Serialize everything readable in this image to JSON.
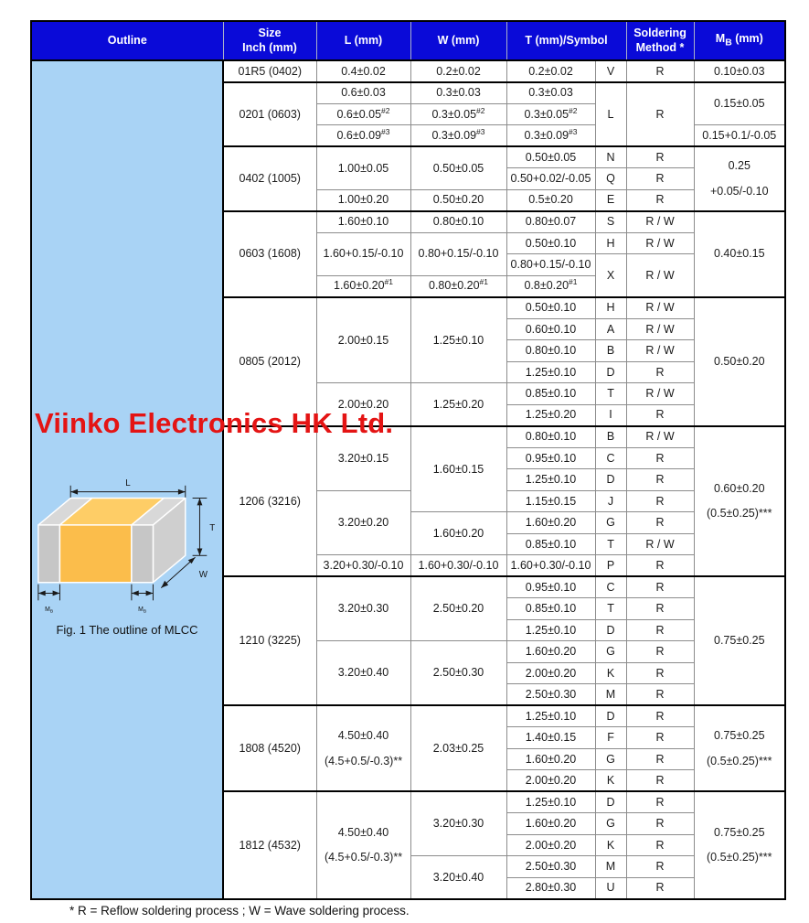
{
  "colors": {
    "header_bg": "#0a0ad8",
    "panel_bg": "#a9d3f5",
    "watermark": "#e41414",
    "chip_body_front": "#fbbd4b",
    "chip_body_top": "#fecd66",
    "chip_cap_front": "#c6c6c6",
    "chip_cap_top": "#d8d8d8",
    "chip_side": "#cfcfcf"
  },
  "header": {
    "outline": "Outline",
    "size": "Size\nInch (mm)",
    "l": "L (mm)",
    "w": "W (mm)",
    "t": "T (mm)/Symbol",
    "soldering": "Soldering\nMethod *",
    "mb_pre": "M",
    "mb_sub": "B",
    "mb_post": " (mm)"
  },
  "figure": {
    "caption": "Fig. 1 The outline of MLCC",
    "dim_l": "L",
    "dim_t": "T",
    "dim_w": "W",
    "mb_main": "M",
    "mb_sub": "B"
  },
  "watermark": "Viinko Electronics HK Ltd.",
  "footnote": "* R = Reflow soldering process ; W = Wave soldering process.",
  "table": {
    "sections": [
      {
        "size": "01R5 (0402)",
        "rows": [
          [
            {
              "t": "0.4±0.02"
            },
            {
              "t": "0.2±0.02"
            },
            {
              "t": "0.2±0.02"
            },
            {
              "t": "V"
            },
            {
              "t": "R"
            },
            {
              "t": "0.10±0.03"
            }
          ]
        ]
      },
      {
        "size": "0201 (0603)",
        "rows": [
          [
            {
              "t": "0.6±0.03"
            },
            {
              "t": "0.3±0.03"
            },
            {
              "t": "0.3±0.03"
            },
            {
              "t": "L",
              "rs": 3
            },
            {
              "t": "R",
              "rs": 3
            },
            {
              "t": "0.15±0.05",
              "rs": 2
            }
          ],
          [
            {
              "t": "0.6±0.05",
              "sup": "#2"
            },
            {
              "t": "0.3±0.05",
              "sup": "#2"
            },
            {
              "t": "0.3±0.05",
              "sup": "#2"
            }
          ],
          [
            {
              "t": "0.6±0.09",
              "sup": "#3"
            },
            {
              "t": "0.3±0.09",
              "sup": "#3"
            },
            {
              "t": "0.3±0.09",
              "sup": "#3"
            },
            {
              "t": "0.15+0.1/-0.05"
            }
          ]
        ]
      },
      {
        "size": "0402 (1005)",
        "rows": [
          [
            {
              "t": "1.00±0.05",
              "rs": 2
            },
            {
              "t": "0.50±0.05",
              "rs": 2
            },
            {
              "t": "0.50±0.05"
            },
            {
              "t": "N"
            },
            {
              "t": "R"
            },
            {
              "lines": [
                "0.25",
                "+0.05/-0.10"
              ],
              "rs": 3
            }
          ],
          [
            {
              "t": "0.50+0.02/-0.05"
            },
            {
              "t": "Q"
            },
            {
              "t": "R"
            }
          ],
          [
            {
              "t": "1.00±0.20"
            },
            {
              "t": "0.50±0.20"
            },
            {
              "t": "0.5±0.20"
            },
            {
              "t": "E"
            },
            {
              "t": "R"
            }
          ]
        ]
      },
      {
        "size": "0603 (1608)",
        "rows": [
          [
            {
              "t": "1.60±0.10"
            },
            {
              "t": "0.80±0.10"
            },
            {
              "t": "0.80±0.07"
            },
            {
              "t": "S"
            },
            {
              "t": "R / W"
            },
            {
              "t": "0.40±0.15",
              "rs": 4
            }
          ],
          [
            {
              "t": "1.60+0.15/-0.10",
              "rs": 2
            },
            {
              "t": "0.80+0.15/-0.10",
              "rs": 2
            },
            {
              "t": "0.50±0.10"
            },
            {
              "t": "H"
            },
            {
              "t": "R / W"
            }
          ],
          [
            {
              "t": "0.80+0.15/-0.10"
            },
            {
              "t": "X",
              "rs": 2
            },
            {
              "t": "R / W",
              "rs": 2
            }
          ],
          [
            {
              "t": "1.60±0.20",
              "sup": "#1"
            },
            {
              "t": "0.80±0.20",
              "sup": "#1"
            },
            {
              "t": "0.8±0.20",
              "sup": "#1"
            }
          ]
        ]
      },
      {
        "size": "0805 (2012)",
        "rows": [
          [
            {
              "t": "2.00±0.15",
              "rs": 4
            },
            {
              "t": "1.25±0.10",
              "rs": 4
            },
            {
              "t": "0.50±0.10"
            },
            {
              "t": "H"
            },
            {
              "t": "R / W"
            },
            {
              "t": "0.50±0.20",
              "rs": 6
            }
          ],
          [
            {
              "t": "0.60±0.10"
            },
            {
              "t": "A"
            },
            {
              "t": "R / W"
            }
          ],
          [
            {
              "t": "0.80±0.10"
            },
            {
              "t": "B"
            },
            {
              "t": "R / W"
            }
          ],
          [
            {
              "t": "1.25±0.10"
            },
            {
              "t": "D"
            },
            {
              "t": "R"
            }
          ],
          [
            {
              "t": "2.00±0.20",
              "rs": 2
            },
            {
              "t": "1.25±0.20",
              "rs": 2
            },
            {
              "t": "0.85±0.10"
            },
            {
              "t": "T"
            },
            {
              "t": "R / W"
            }
          ],
          [
            {
              "t": "1.25±0.20"
            },
            {
              "t": "I"
            },
            {
              "t": "R"
            }
          ]
        ]
      },
      {
        "size": "1206 (3216)",
        "rows": [
          [
            {
              "t": "3.20±0.15",
              "rs": 3
            },
            {
              "t": "1.60±0.15",
              "rs": 4
            },
            {
              "t": "0.80±0.10"
            },
            {
              "t": "B"
            },
            {
              "t": "R / W"
            },
            {
              "lines": [
                "0.60±0.20",
                "(0.5±0.25)***"
              ],
              "rs": 7
            }
          ],
          [
            {
              "t": "0.95±0.10"
            },
            {
              "t": "C"
            },
            {
              "t": "R"
            }
          ],
          [
            {
              "t": "1.25±0.10"
            },
            {
              "t": "D"
            },
            {
              "t": "R"
            }
          ],
          [
            {
              "t": "3.20±0.20",
              "rs": 3
            },
            {
              "t": "1.15±0.15"
            },
            {
              "t": "J"
            },
            {
              "t": "R"
            }
          ],
          [
            {
              "t": "1.60±0.20",
              "rs": 2
            },
            {
              "t": "1.60±0.20"
            },
            {
              "t": "G"
            },
            {
              "t": "R"
            }
          ],
          [
            {
              "t": "0.85±0.10"
            },
            {
              "t": "T"
            },
            {
              "t": "R / W"
            }
          ],
          [
            {
              "t": "3.20+0.30/-0.10"
            },
            {
              "t": "1.60+0.30/-0.10"
            },
            {
              "t": "1.60+0.30/-0.10"
            },
            {
              "t": "P"
            },
            {
              "t": "R"
            }
          ]
        ]
      },
      {
        "size": "1210 (3225)",
        "rows": [
          [
            {
              "t": "3.20±0.30",
              "rs": 3
            },
            {
              "t": "2.50±0.20",
              "rs": 3
            },
            {
              "t": "0.95±0.10"
            },
            {
              "t": "C"
            },
            {
              "t": "R"
            },
            {
              "t": "0.75±0.25",
              "rs": 6
            }
          ],
          [
            {
              "t": "0.85±0.10"
            },
            {
              "t": "T"
            },
            {
              "t": "R"
            }
          ],
          [
            {
              "t": "1.25±0.10"
            },
            {
              "t": "D"
            },
            {
              "t": "R"
            }
          ],
          [
            {
              "t": "3.20±0.40",
              "rs": 3
            },
            {
              "t": "2.50±0.30",
              "rs": 3
            },
            {
              "t": "1.60±0.20"
            },
            {
              "t": "G"
            },
            {
              "t": "R"
            }
          ],
          [
            {
              "t": "2.00±0.20"
            },
            {
              "t": "K"
            },
            {
              "t": "R"
            }
          ],
          [
            {
              "t": "2.50±0.30"
            },
            {
              "t": "M"
            },
            {
              "t": "R"
            }
          ]
        ]
      },
      {
        "size": "1808 (4520)",
        "rows": [
          [
            {
              "lines": [
                "4.50±0.40",
                "(4.5+0.5/-0.3)**"
              ],
              "rs": 4
            },
            {
              "t": "2.03±0.25",
              "rs": 4
            },
            {
              "t": "1.25±0.10"
            },
            {
              "t": "D"
            },
            {
              "t": "R"
            },
            {
              "lines": [
                "0.75±0.25",
                "(0.5±0.25)***"
              ],
              "rs": 4
            }
          ],
          [
            {
              "t": "1.40±0.15"
            },
            {
              "t": "F"
            },
            {
              "t": "R"
            }
          ],
          [
            {
              "t": "1.60±0.20"
            },
            {
              "t": "G"
            },
            {
              "t": "R"
            }
          ],
          [
            {
              "t": "2.00±0.20"
            },
            {
              "t": "K"
            },
            {
              "t": "R"
            }
          ]
        ]
      },
      {
        "size": "1812 (4532)",
        "rows": [
          [
            {
              "lines": [
                "4.50±0.40",
                "(4.5+0.5/-0.3)**"
              ],
              "rs": 5
            },
            {
              "t": "3.20±0.30",
              "rs": 3
            },
            {
              "t": "1.25±0.10"
            },
            {
              "t": "D"
            },
            {
              "t": "R"
            },
            {
              "lines": [
                "0.75±0.25",
                "(0.5±0.25)***"
              ],
              "rs": 5
            }
          ],
          [
            {
              "t": "1.60±0.20"
            },
            {
              "t": "G"
            },
            {
              "t": "R"
            }
          ],
          [
            {
              "t": "2.00±0.20"
            },
            {
              "t": "K"
            },
            {
              "t": "R"
            }
          ],
          [
            {
              "t": "3.20±0.40",
              "rs": 2
            },
            {
              "t": "2.50±0.30"
            },
            {
              "t": "M"
            },
            {
              "t": "R"
            }
          ],
          [
            {
              "t": "2.80±0.30"
            },
            {
              "t": "U"
            },
            {
              "t": "R"
            }
          ]
        ]
      }
    ]
  }
}
